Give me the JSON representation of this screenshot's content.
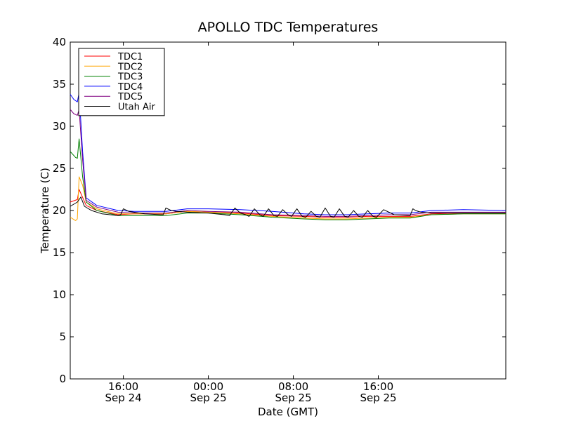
{
  "chart_data": {
    "type": "line",
    "title": "APOLLO TDC Temperatures",
    "xlabel": "Date (GMT)",
    "ylabel": "Temperature (C)",
    "ylim": [
      0,
      40
    ],
    "yticks": [
      "0",
      "5",
      "10",
      "15",
      "20",
      "25",
      "30",
      "35",
      "40"
    ],
    "xlim": [
      "2014-09-24 11:00",
      "2014-09-26 04:00"
    ],
    "xticks": [
      {
        "at": "2014-09-24 16:00",
        "time": "16:00",
        "date": "Sep 24"
      },
      {
        "at": "2014-09-25 00:00",
        "time": "00:00",
        "date": "Sep 25"
      },
      {
        "at": "2014-09-25 08:00",
        "time": "08:00",
        "date": "Sep 25"
      },
      {
        "at": "2014-09-25 16:00",
        "time": "16:00",
        "date": "Sep 25"
      }
    ],
    "grid": false,
    "legend_position": "top-left",
    "series": [
      {
        "name": "TDC1",
        "color": "#ff0000",
        "x": [
          "2014-09-24 11:00",
          "2014-09-24 11:40",
          "2014-09-24 11:50",
          "2014-09-24 12:30",
          "2014-09-24 13:30",
          "2014-09-24 15:30",
          "2014-09-24 17:00",
          "2014-09-24 20:00",
          "2014-09-24 22:00",
          "2014-09-25 00:00",
          "2014-09-25 03:00",
          "2014-09-25 06:00",
          "2014-09-25 09:00",
          "2014-09-25 11:00",
          "2014-09-25 13:00",
          "2014-09-25 15:00",
          "2014-09-25 17:00",
          "2014-09-25 19:00",
          "2014-09-25 21:00",
          "2014-09-26 00:00",
          "2014-09-26 04:00"
        ],
        "y": [
          21.0,
          21.3,
          22.5,
          20.6,
          20.0,
          19.5,
          19.6,
          19.6,
          19.9,
          19.8,
          19.7,
          19.4,
          19.3,
          19.2,
          19.2,
          19.3,
          19.3,
          19.3,
          19.6,
          19.7,
          19.7
        ]
      },
      {
        "name": "TDC2",
        "color": "#ffa500",
        "x": [
          "2014-09-24 11:00",
          "2014-09-24 11:30",
          "2014-09-24 11:40",
          "2014-09-24 11:50",
          "2014-09-24 12:10",
          "2014-09-24 12:30",
          "2014-09-24 13:30",
          "2014-09-24 15:30",
          "2014-09-24 17:00",
          "2014-09-24 20:00",
          "2014-09-24 22:00",
          "2014-09-25 00:00",
          "2014-09-25 03:00",
          "2014-09-25 06:00",
          "2014-09-25 09:00",
          "2014-09-25 11:00",
          "2014-09-25 13:00",
          "2014-09-25 15:00",
          "2014-09-25 17:00",
          "2014-09-25 19:00",
          "2014-09-25 21:00",
          "2014-09-26 00:00",
          "2014-09-26 04:00"
        ],
        "y": [
          19.2,
          18.8,
          19.0,
          24.0,
          23.0,
          21.0,
          20.2,
          19.6,
          19.6,
          19.6,
          19.9,
          19.8,
          19.6,
          19.3,
          19.1,
          19.0,
          19.0,
          19.1,
          19.2,
          19.2,
          19.5,
          19.6,
          19.6
        ]
      },
      {
        "name": "TDC3",
        "color": "#008000",
        "x": [
          "2014-09-24 11:00",
          "2014-09-24 11:30",
          "2014-09-24 11:40",
          "2014-09-24 11:50",
          "2014-09-24 12:10",
          "2014-09-24 12:30",
          "2014-09-24 13:30",
          "2014-09-24 15:30",
          "2014-09-24 17:00",
          "2014-09-24 20:00",
          "2014-09-24 22:00",
          "2014-09-25 00:00",
          "2014-09-25 03:00",
          "2014-09-25 06:00",
          "2014-09-25 09:00",
          "2014-09-25 11:00",
          "2014-09-25 13:00",
          "2014-09-25 15:00",
          "2014-09-25 17:00",
          "2014-09-25 19:00",
          "2014-09-25 21:00",
          "2014-09-26 00:00",
          "2014-09-26 04:00"
        ],
        "y": [
          27.0,
          26.3,
          26.2,
          28.5,
          24.0,
          21.0,
          20.0,
          19.4,
          19.4,
          19.4,
          19.7,
          19.7,
          19.5,
          19.2,
          19.0,
          18.9,
          18.9,
          19.0,
          19.1,
          19.1,
          19.5,
          19.6,
          19.6
        ]
      },
      {
        "name": "TDC4",
        "color": "#0000ff",
        "x": [
          "2014-09-24 11:00",
          "2014-09-24 11:20",
          "2014-09-24 11:40",
          "2014-09-24 11:50",
          "2014-09-24 12:10",
          "2014-09-24 12:30",
          "2014-09-24 13:30",
          "2014-09-24 15:30",
          "2014-09-24 17:00",
          "2014-09-24 20:00",
          "2014-09-24 22:00",
          "2014-09-25 00:00",
          "2014-09-25 03:00",
          "2014-09-25 06:00",
          "2014-09-25 09:00",
          "2014-09-25 11:00",
          "2014-09-25 13:00",
          "2014-09-25 15:00",
          "2014-09-25 17:00",
          "2014-09-25 19:00",
          "2014-09-25 21:00",
          "2014-09-26 00:00",
          "2014-09-26 04:00"
        ],
        "y": [
          33.8,
          33.2,
          32.9,
          34.0,
          27.0,
          21.5,
          20.6,
          20.0,
          19.9,
          19.9,
          20.2,
          20.2,
          20.1,
          19.9,
          19.6,
          19.5,
          19.5,
          19.6,
          19.7,
          19.7,
          20.0,
          20.1,
          20.0
        ]
      },
      {
        "name": "TDC5",
        "color": "#800080",
        "x": [
          "2014-09-24 11:00",
          "2014-09-24 11:20",
          "2014-09-24 11:40",
          "2014-09-24 11:50",
          "2014-09-24 12:10",
          "2014-09-24 12:30",
          "2014-09-24 13:30",
          "2014-09-24 15:30",
          "2014-09-24 17:00",
          "2014-09-24 20:00",
          "2014-09-24 22:00",
          "2014-09-25 00:00",
          "2014-09-25 03:00",
          "2014-09-25 06:00",
          "2014-09-25 09:00",
          "2014-09-25 11:00",
          "2014-09-25 13:00",
          "2014-09-25 15:00",
          "2014-09-25 17:00",
          "2014-09-25 19:00",
          "2014-09-25 21:00",
          "2014-09-26 00:00",
          "2014-09-26 04:00"
        ],
        "y": [
          32.0,
          31.5,
          31.3,
          32.0,
          26.0,
          21.2,
          20.4,
          19.8,
          19.7,
          19.7,
          20.0,
          19.9,
          19.8,
          19.5,
          19.4,
          19.3,
          19.3,
          19.4,
          19.5,
          19.5,
          19.8,
          19.8,
          19.8
        ]
      },
      {
        "name": "Utah Air",
        "color": "#000000",
        "x": [
          "2014-09-24 11:00",
          "2014-09-24 11:40",
          "2014-09-24 12:00",
          "2014-09-24 12:20",
          "2014-09-24 13:00",
          "2014-09-24 14:00",
          "2014-09-24 15:30",
          "2014-09-24 15:45",
          "2014-09-24 16:00",
          "2014-09-24 16:30",
          "2014-09-24 17:00",
          "2014-09-24 18:00",
          "2014-09-24 19:30",
          "2014-09-24 19:45",
          "2014-09-24 20:00",
          "2014-09-24 20:30",
          "2014-09-24 21:00",
          "2014-09-24 22:00",
          "2014-09-25 00:00",
          "2014-09-25 01:30",
          "2014-09-25 02:00",
          "2014-09-25 02:30",
          "2014-09-25 03:00",
          "2014-09-25 03:30",
          "2014-09-25 03:50",
          "2014-09-25 04:20",
          "2014-09-25 04:50",
          "2014-09-25 05:10",
          "2014-09-25 05:40",
          "2014-09-25 06:10",
          "2014-09-25 06:30",
          "2014-09-25 07:00",
          "2014-09-25 07:30",
          "2014-09-25 07:50",
          "2014-09-25 08:20",
          "2014-09-25 08:50",
          "2014-09-25 09:10",
          "2014-09-25 09:40",
          "2014-09-25 10:10",
          "2014-09-25 10:30",
          "2014-09-25 11:00",
          "2014-09-25 11:30",
          "2014-09-25 11:50",
          "2014-09-25 12:20",
          "2014-09-25 12:50",
          "2014-09-25 13:10",
          "2014-09-25 13:40",
          "2014-09-25 14:10",
          "2014-09-25 14:30",
          "2014-09-25 15:00",
          "2014-09-25 15:30",
          "2014-09-25 15:50",
          "2014-09-25 16:30",
          "2014-09-25 17:30",
          "2014-09-25 19:00",
          "2014-09-25 19:15",
          "2014-09-25 19:30",
          "2014-09-25 20:00",
          "2014-09-25 21:00",
          "2014-09-26 00:00",
          "2014-09-26 04:00"
        ],
        "y": [
          20.5,
          21.0,
          21.6,
          20.5,
          20.0,
          19.6,
          19.4,
          19.5,
          20.2,
          19.9,
          19.8,
          19.6,
          19.5,
          19.5,
          20.3,
          20.0,
          19.9,
          19.8,
          19.7,
          19.5,
          19.4,
          20.3,
          19.7,
          19.5,
          19.3,
          20.2,
          19.5,
          19.3,
          20.2,
          19.4,
          19.3,
          20.1,
          19.5,
          19.3,
          20.2,
          19.3,
          19.2,
          19.9,
          19.3,
          19.2,
          20.3,
          19.3,
          19.2,
          20.2,
          19.3,
          19.2,
          20.0,
          19.3,
          19.2,
          20.0,
          19.3,
          19.2,
          20.1,
          19.5,
          19.4,
          20.2,
          20.0,
          19.8,
          19.7,
          19.7,
          19.7
        ]
      }
    ]
  }
}
